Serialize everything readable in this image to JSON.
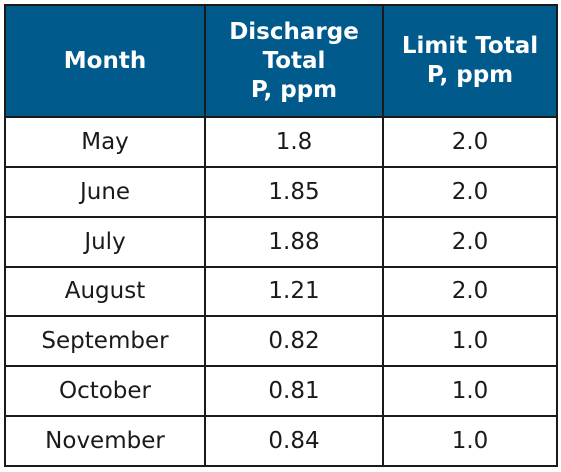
{
  "colors": {
    "header_bg": "#005a8c",
    "header_text": "#ffffff",
    "border": "#1a1a1a",
    "cell_text": "#1a1a1a"
  },
  "table": {
    "headers": {
      "month": "Month",
      "discharge": [
        "Discharge",
        "Total",
        "P, ppm"
      ],
      "limit": [
        "Limit Total",
        "P, ppm"
      ]
    },
    "rows": [
      {
        "month": "May",
        "discharge": "1.8",
        "limit": "2.0"
      },
      {
        "month": "June",
        "discharge": "1.85",
        "limit": "2.0"
      },
      {
        "month": "July",
        "discharge": "1.88",
        "limit": "2.0"
      },
      {
        "month": "August",
        "discharge": "1.21",
        "limit": "2.0"
      },
      {
        "month": "September",
        "discharge": "0.82",
        "limit": "1.0"
      },
      {
        "month": "October",
        "discharge": "0.81",
        "limit": "1.0"
      },
      {
        "month": "November",
        "discharge": "0.84",
        "limit": "1.0"
      }
    ]
  }
}
